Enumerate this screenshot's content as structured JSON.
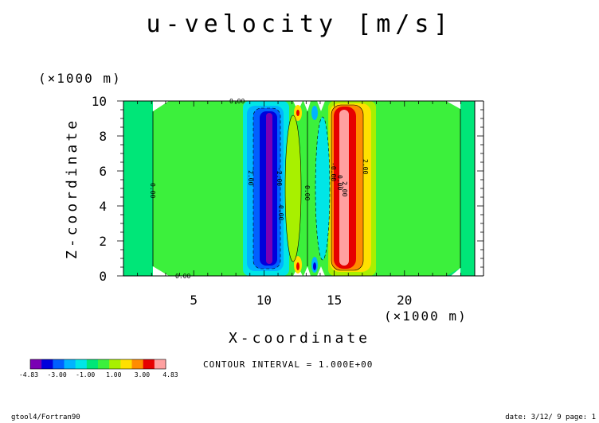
{
  "chart_data": {
    "type": "heatmap",
    "title": "u-velocity [m/s]",
    "xlabel": "X-coordinate",
    "ylabel": "Z-coordinate",
    "x_unit": "(×1000 m)",
    "y_unit": "(×1000 m)",
    "xlim": [
      0,
      25
    ],
    "ylim": [
      0,
      10
    ],
    "x_ticks": [
      "5",
      "10",
      "15",
      "20"
    ],
    "y_ticks": [
      "0",
      "2",
      "4",
      "6",
      "8",
      "10"
    ],
    "grid": false,
    "contour_interval_text": "CONTOUR INTERVAL = 1.000E+00",
    "contour_labels": [
      "0.00",
      "0.00",
      "0.00",
      "2.00",
      "0.00",
      "2.00",
      "-2.00",
      "-0.00",
      "0.00",
      "2.00",
      "0.00"
    ],
    "colorbar": {
      "colors": [
        "#7a00b4",
        "#0000dc",
        "#0060ff",
        "#00b4ff",
        "#00e6e6",
        "#00e678",
        "#3cf03c",
        "#a8f000",
        "#ffe000",
        "#ff8c00",
        "#e60000",
        "#ffa0a0"
      ],
      "tick_labels": [
        "-4.83",
        "-3.00",
        "-1.00",
        "1.00",
        "3.00",
        "4.83"
      ]
    },
    "field_summary": {
      "background_value": "~0 (green)",
      "negative_band_x_center": 10.3,
      "positive_band_x_center": 15.5,
      "min": -4.83,
      "max": 4.83
    }
  },
  "footer": {
    "left": "gtool4/Fortran90",
    "right": "date: 3/12/ 9 page: 1"
  }
}
